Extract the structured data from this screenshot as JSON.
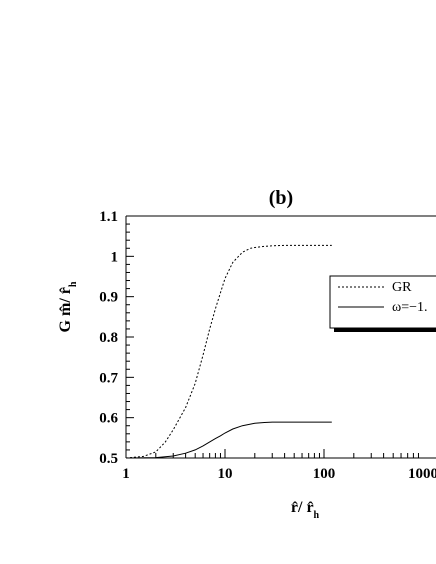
{
  "chart_data": {
    "type": "line",
    "panel_label": "(b)",
    "xlabel": {
      "main": "r̂/ r̂",
      "sub": "h"
    },
    "ylabel": {
      "main": "G m̂/ r̂",
      "sub": "h"
    },
    "x_scale": "log",
    "xlim": [
      1,
      120
    ],
    "ylim": [
      0.5,
      1.1
    ],
    "x_ticks": [
      {
        "value": 1,
        "label": "1"
      },
      {
        "value": 10,
        "label": "10"
      },
      {
        "value": 100,
        "label": "100"
      },
      {
        "value": 1000,
        "label": "1000"
      }
    ],
    "y_ticks": [
      {
        "value": 0.5,
        "label": "0.5"
      },
      {
        "value": 0.6,
        "label": "0.6"
      },
      {
        "value": 0.7,
        "label": "0.7"
      },
      {
        "value": 0.8,
        "label": "0.8"
      },
      {
        "value": 0.9,
        "label": "0.9"
      },
      {
        "value": 1.0,
        "label": "1"
      },
      {
        "value": 1.1,
        "label": "1.1"
      }
    ],
    "grid": false,
    "legend_position": "right",
    "series": [
      {
        "name": "GR",
        "style": "dotted",
        "color": "#000000",
        "x": [
          1,
          1.5,
          2,
          2.5,
          3,
          4,
          5,
          6,
          7,
          8,
          9,
          10,
          12,
          15,
          18,
          20,
          25,
          30,
          40,
          50,
          70,
          100,
          120
        ],
        "y": [
          0.5,
          0.504,
          0.515,
          0.54,
          0.57,
          0.625,
          0.685,
          0.755,
          0.82,
          0.87,
          0.91,
          0.945,
          0.985,
          1.01,
          1.02,
          1.022,
          1.025,
          1.026,
          1.027,
          1.027,
          1.027,
          1.027,
          1.027
        ]
      },
      {
        "name": "ω=−1.",
        "style": "solid",
        "color": "#000000",
        "x": [
          1,
          2,
          3,
          4,
          5,
          6,
          7,
          8,
          9,
          10,
          12,
          15,
          20,
          25,
          30,
          40,
          50,
          70,
          100,
          120
        ],
        "y": [
          0.5,
          0.501,
          0.505,
          0.512,
          0.52,
          0.53,
          0.54,
          0.548,
          0.555,
          0.562,
          0.572,
          0.58,
          0.586,
          0.588,
          0.589,
          0.589,
          0.589,
          0.589,
          0.589,
          0.589
        ]
      }
    ]
  }
}
